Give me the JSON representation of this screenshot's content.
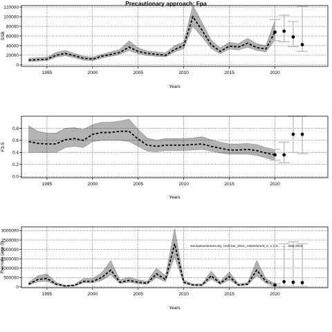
{
  "figure": {
    "title": "Precautionary approach: Fpa",
    "annotation": "stockassessment.org, HAD.bw_2021_Assessment_2, 1.1.0... ..., ...Mar-2022"
  },
  "chart_data": [
    {
      "type": "line",
      "ylabel": "SSB",
      "xlabel": "Years",
      "xlim": [
        1992.2,
        2025.8
      ],
      "ylim": [
        -3000,
        123000
      ],
      "xticks": [
        1995,
        2000,
        2005,
        2010,
        2015,
        2020
      ],
      "xtick_labels": [
        "1995",
        "2000",
        "2005",
        "2010",
        "2015",
        "2020"
      ],
      "yticks": [
        0,
        20000,
        40000,
        60000,
        80000,
        100000,
        120000
      ],
      "ytick_labels": [
        "0",
        "20000",
        "40000",
        "60000",
        "80000",
        "100000",
        "120000"
      ],
      "grid": true,
      "years": [
        1993,
        1994,
        1995,
        1996,
        1997,
        1998,
        1999,
        2000,
        2001,
        2002,
        2003,
        2004,
        2005,
        2006,
        2007,
        2008,
        2009,
        2010,
        2011,
        2012,
        2013,
        2014,
        2015,
        2016,
        2017,
        2018,
        2019,
        2020
      ],
      "estimate": [
        10000,
        11000,
        12000,
        20000,
        24000,
        19000,
        14000,
        12000,
        18000,
        22000,
        26000,
        37000,
        28000,
        24000,
        22000,
        20000,
        32000,
        40000,
        100000,
        72000,
        42000,
        28000,
        39000,
        37000,
        45000,
        36000,
        33000,
        68000
      ],
      "lower": [
        7000,
        8000,
        9000,
        16000,
        19000,
        15000,
        10000,
        9000,
        14000,
        18000,
        22000,
        30000,
        23000,
        20000,
        18000,
        17000,
        27000,
        34000,
        80000,
        58000,
        34000,
        23000,
        33000,
        31000,
        37000,
        30000,
        27000,
        52000
      ],
      "upper": [
        14000,
        15000,
        16000,
        26000,
        30000,
        24000,
        18000,
        16000,
        22000,
        27000,
        32000,
        50000,
        35000,
        29000,
        27000,
        25000,
        40000,
        48000,
        123000,
        88000,
        52000,
        35000,
        47000,
        44000,
        55000,
        44000,
        40000,
        92000
      ],
      "forecast": {
        "years": [
          2020,
          2021,
          2022,
          2023
        ],
        "median": [
          68000,
          70000,
          58000,
          42000
        ],
        "lower": [
          50000,
          48000,
          38000,
          28000
        ],
        "upper": [
          94000,
          103000,
          90000,
          121000
        ]
      }
    },
    {
      "type": "line",
      "ylabel": "F3-5",
      "xlabel": "Years",
      "xlim": [
        1992.2,
        2025.8
      ],
      "ylim": [
        -0.02,
        1.0
      ],
      "xticks": [
        1995,
        2000,
        2005,
        2010,
        2015,
        2020
      ],
      "xtick_labels": [
        "1995",
        "2000",
        "2005",
        "2010",
        "2015",
        "2020"
      ],
      "yticks": [
        0.0,
        0.2,
        0.4,
        0.6,
        0.8
      ],
      "ytick_labels": [
        "0.0",
        "0.2",
        "0.4",
        "0.6",
        "0.8"
      ],
      "grid": true,
      "years": [
        1993,
        1994,
        1995,
        1996,
        1997,
        1998,
        1999,
        2000,
        2001,
        2002,
        2003,
        2004,
        2005,
        2006,
        2007,
        2008,
        2009,
        2010,
        2011,
        2012,
        2013,
        2014,
        2015,
        2016,
        2017,
        2018,
        2019,
        2020
      ],
      "estimate": [
        0.58,
        0.55,
        0.54,
        0.54,
        0.61,
        0.63,
        0.6,
        0.7,
        0.73,
        0.73,
        0.75,
        0.75,
        0.62,
        0.52,
        0.5,
        0.52,
        0.52,
        0.52,
        0.53,
        0.54,
        0.5,
        0.47,
        0.44,
        0.44,
        0.45,
        0.43,
        0.39,
        0.36
      ],
      "lower": [
        0.4,
        0.4,
        0.4,
        0.4,
        0.48,
        0.5,
        0.48,
        0.58,
        0.6,
        0.6,
        0.6,
        0.58,
        0.5,
        0.42,
        0.41,
        0.43,
        0.43,
        0.43,
        0.44,
        0.45,
        0.42,
        0.39,
        0.37,
        0.37,
        0.37,
        0.35,
        0.31,
        0.27
      ],
      "upper": [
        0.84,
        0.75,
        0.72,
        0.72,
        0.8,
        0.81,
        0.78,
        0.86,
        0.9,
        0.9,
        0.92,
        0.95,
        0.78,
        0.64,
        0.6,
        0.63,
        0.63,
        0.63,
        0.64,
        0.66,
        0.61,
        0.57,
        0.54,
        0.54,
        0.55,
        0.53,
        0.48,
        0.45
      ],
      "forecast": {
        "years": [
          2020,
          2021,
          2022,
          2023
        ],
        "median": [
          0.36,
          0.36,
          0.7,
          0.7
        ],
        "lower": [
          0.27,
          0.23,
          0.4,
          0.38
        ],
        "upper": [
          0.45,
          0.57,
          1.0,
          1.0
        ]
      }
    },
    {
      "type": "line",
      "ylabel": "Recruits (age 0)",
      "xlabel": "Years",
      "xlim": [
        1992.2,
        2025.8
      ],
      "ylim": [
        -40000,
        3200000
      ],
      "xticks": [
        1995,
        2000,
        2005,
        2010,
        2015,
        2020
      ],
      "xtick_labels": [
        "1995",
        "2000",
        "2005",
        "2010",
        "2015",
        "2020"
      ],
      "yticks": [
        0,
        500000,
        1000000,
        1500000,
        2000000,
        2500000,
        3000000
      ],
      "ytick_labels": [
        "0",
        "500000",
        "1000000",
        "1500000",
        "2000000",
        "2500000",
        "3000000"
      ],
      "grid": true,
      "years": [
        1993,
        1994,
        1995,
        1996,
        1997,
        1998,
        1999,
        2000,
        2001,
        2002,
        2003,
        2004,
        2005,
        2006,
        2007,
        2008,
        2009,
        2010,
        2011,
        2012,
        2013,
        2014,
        2015,
        2016,
        2017,
        2018,
        2019,
        2020
      ],
      "estimate": [
        150000,
        400000,
        450000,
        150000,
        50000,
        80000,
        300000,
        300000,
        500000,
        900000,
        250000,
        350000,
        250000,
        200000,
        700000,
        400000,
        2300000,
        250000,
        100000,
        100000,
        600000,
        200000,
        550000,
        100000,
        150000,
        900000,
        300000,
        100000
      ],
      "lower": [
        100000,
        280000,
        300000,
        100000,
        30000,
        50000,
        220000,
        220000,
        350000,
        650000,
        180000,
        250000,
        180000,
        140000,
        500000,
        280000,
        1600000,
        180000,
        70000,
        70000,
        420000,
        140000,
        380000,
        70000,
        100000,
        600000,
        200000,
        60000
      ],
      "upper": [
        250000,
        600000,
        700000,
        250000,
        90000,
        130000,
        450000,
        450000,
        750000,
        1400000,
        380000,
        520000,
        380000,
        300000,
        1000000,
        600000,
        3100000,
        380000,
        160000,
        160000,
        850000,
        300000,
        800000,
        160000,
        240000,
        1400000,
        450000,
        180000
      ],
      "forecast": {
        "years": [
          2020,
          2021,
          2022,
          2023
        ],
        "median": [
          100000,
          280000,
          250000,
          230000
        ],
        "lower": [
          60000,
          20000,
          20000,
          20000
        ],
        "upper": [
          180000,
          2300000,
          2400000,
          2300000
        ]
      }
    }
  ]
}
